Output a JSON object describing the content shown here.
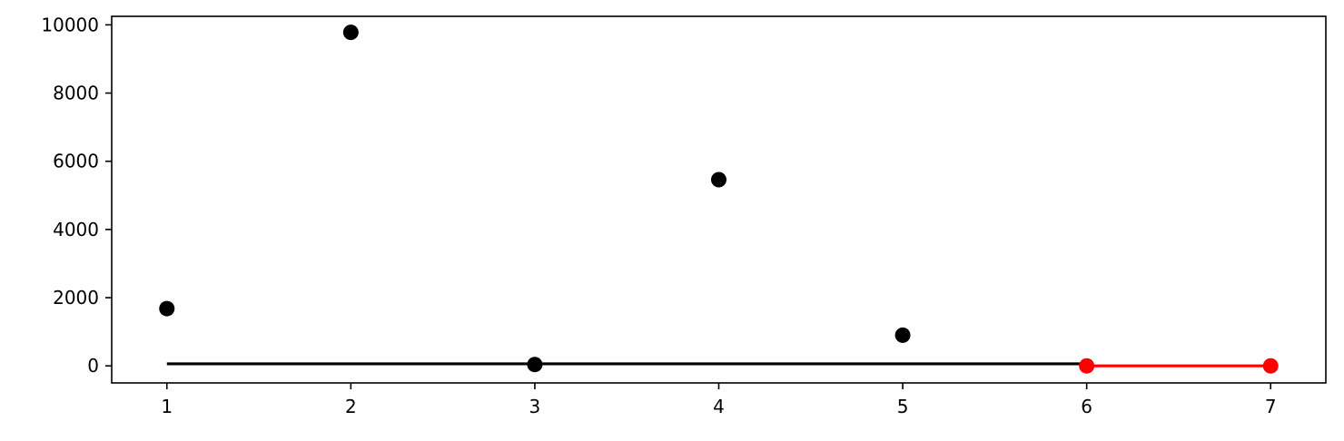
{
  "chart_data": {
    "type": "scatter",
    "title": "",
    "xlabel": "",
    "ylabel": "",
    "xlim": [
      0.7,
      7.3
    ],
    "ylim": [
      -500,
      10250
    ],
    "x_ticks": [
      1,
      2,
      3,
      4,
      5,
      6,
      7
    ],
    "y_ticks": [
      0,
      2000,
      4000,
      6000,
      8000,
      10000
    ],
    "x_tick_labels": [
      "1",
      "2",
      "3",
      "4",
      "5",
      "6",
      "7"
    ],
    "y_tick_labels": [
      "0",
      "2000",
      "4000",
      "6000",
      "8000",
      "10000"
    ],
    "grid": false,
    "series": [
      {
        "kind": "scatter",
        "color": "#000000",
        "points": [
          {
            "x": 1,
            "y": 1680
          },
          {
            "x": 2,
            "y": 9780
          },
          {
            "x": 3,
            "y": 40
          },
          {
            "x": 4,
            "y": 5460
          },
          {
            "x": 5,
            "y": 900
          }
        ]
      },
      {
        "kind": "line",
        "color": "#000000",
        "points": [
          {
            "x": 1,
            "y": 60
          },
          {
            "x": 6,
            "y": 60
          }
        ]
      },
      {
        "kind": "line-markers",
        "color": "#ff0000",
        "points": [
          {
            "x": 6,
            "y": 0
          },
          {
            "x": 7,
            "y": 0
          }
        ]
      }
    ]
  }
}
